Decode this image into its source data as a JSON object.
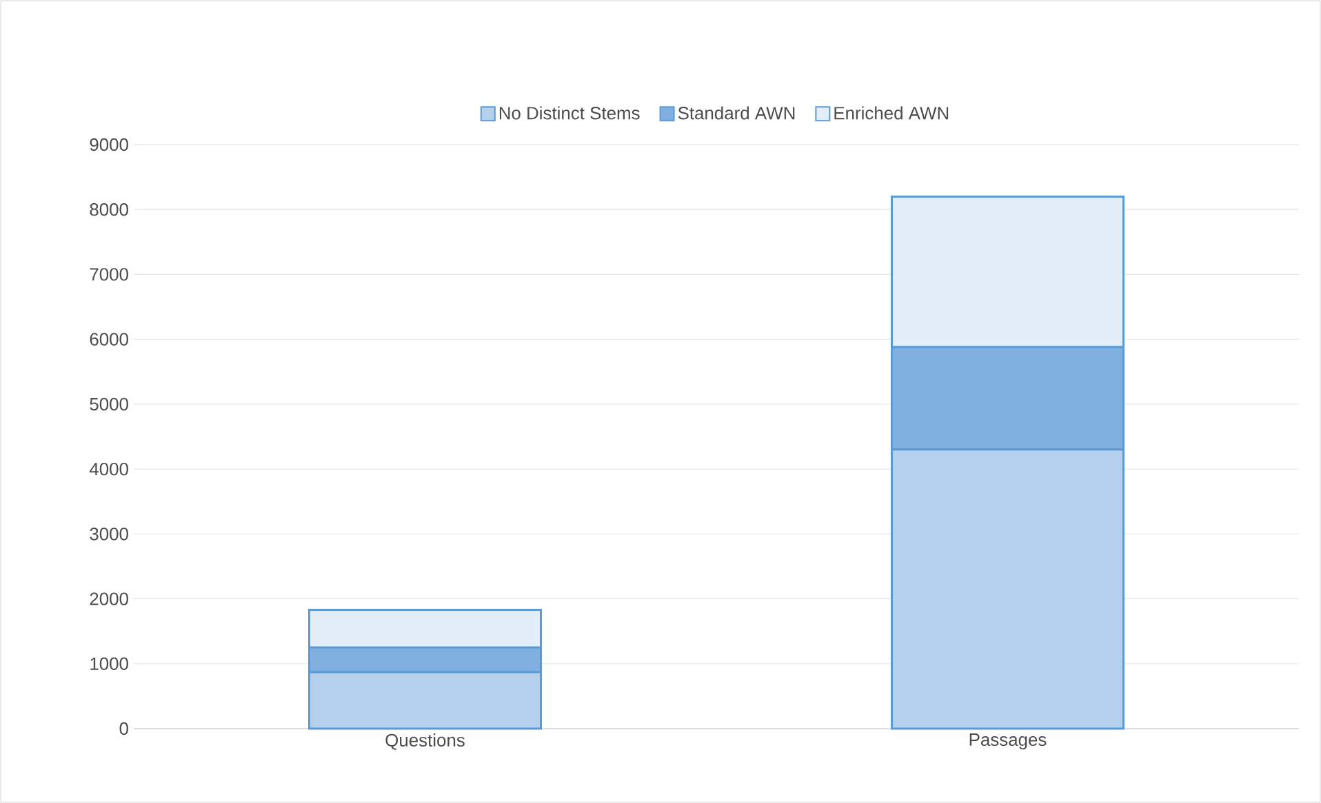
{
  "chart_data": {
    "type": "bar",
    "stacked": true,
    "categories": [
      "Questions",
      "Passages"
    ],
    "series": [
      {
        "name": "No Distinct Stems",
        "color": "#b4d0ec",
        "values": [
          870,
          4300
        ]
      },
      {
        "name": "Standard AWN",
        "color": "#7fb0df",
        "values": [
          380,
          1580
        ]
      },
      {
        "name": "Enriched AWN",
        "color": "#e3eef9",
        "values": [
          580,
          2320
        ]
      }
    ],
    "ylim": [
      0,
      9000
    ],
    "yticks": [
      0,
      1000,
      2000,
      3000,
      4000,
      5000,
      6000,
      7000,
      8000,
      9000
    ],
    "grid": "y",
    "legend": "top"
  }
}
